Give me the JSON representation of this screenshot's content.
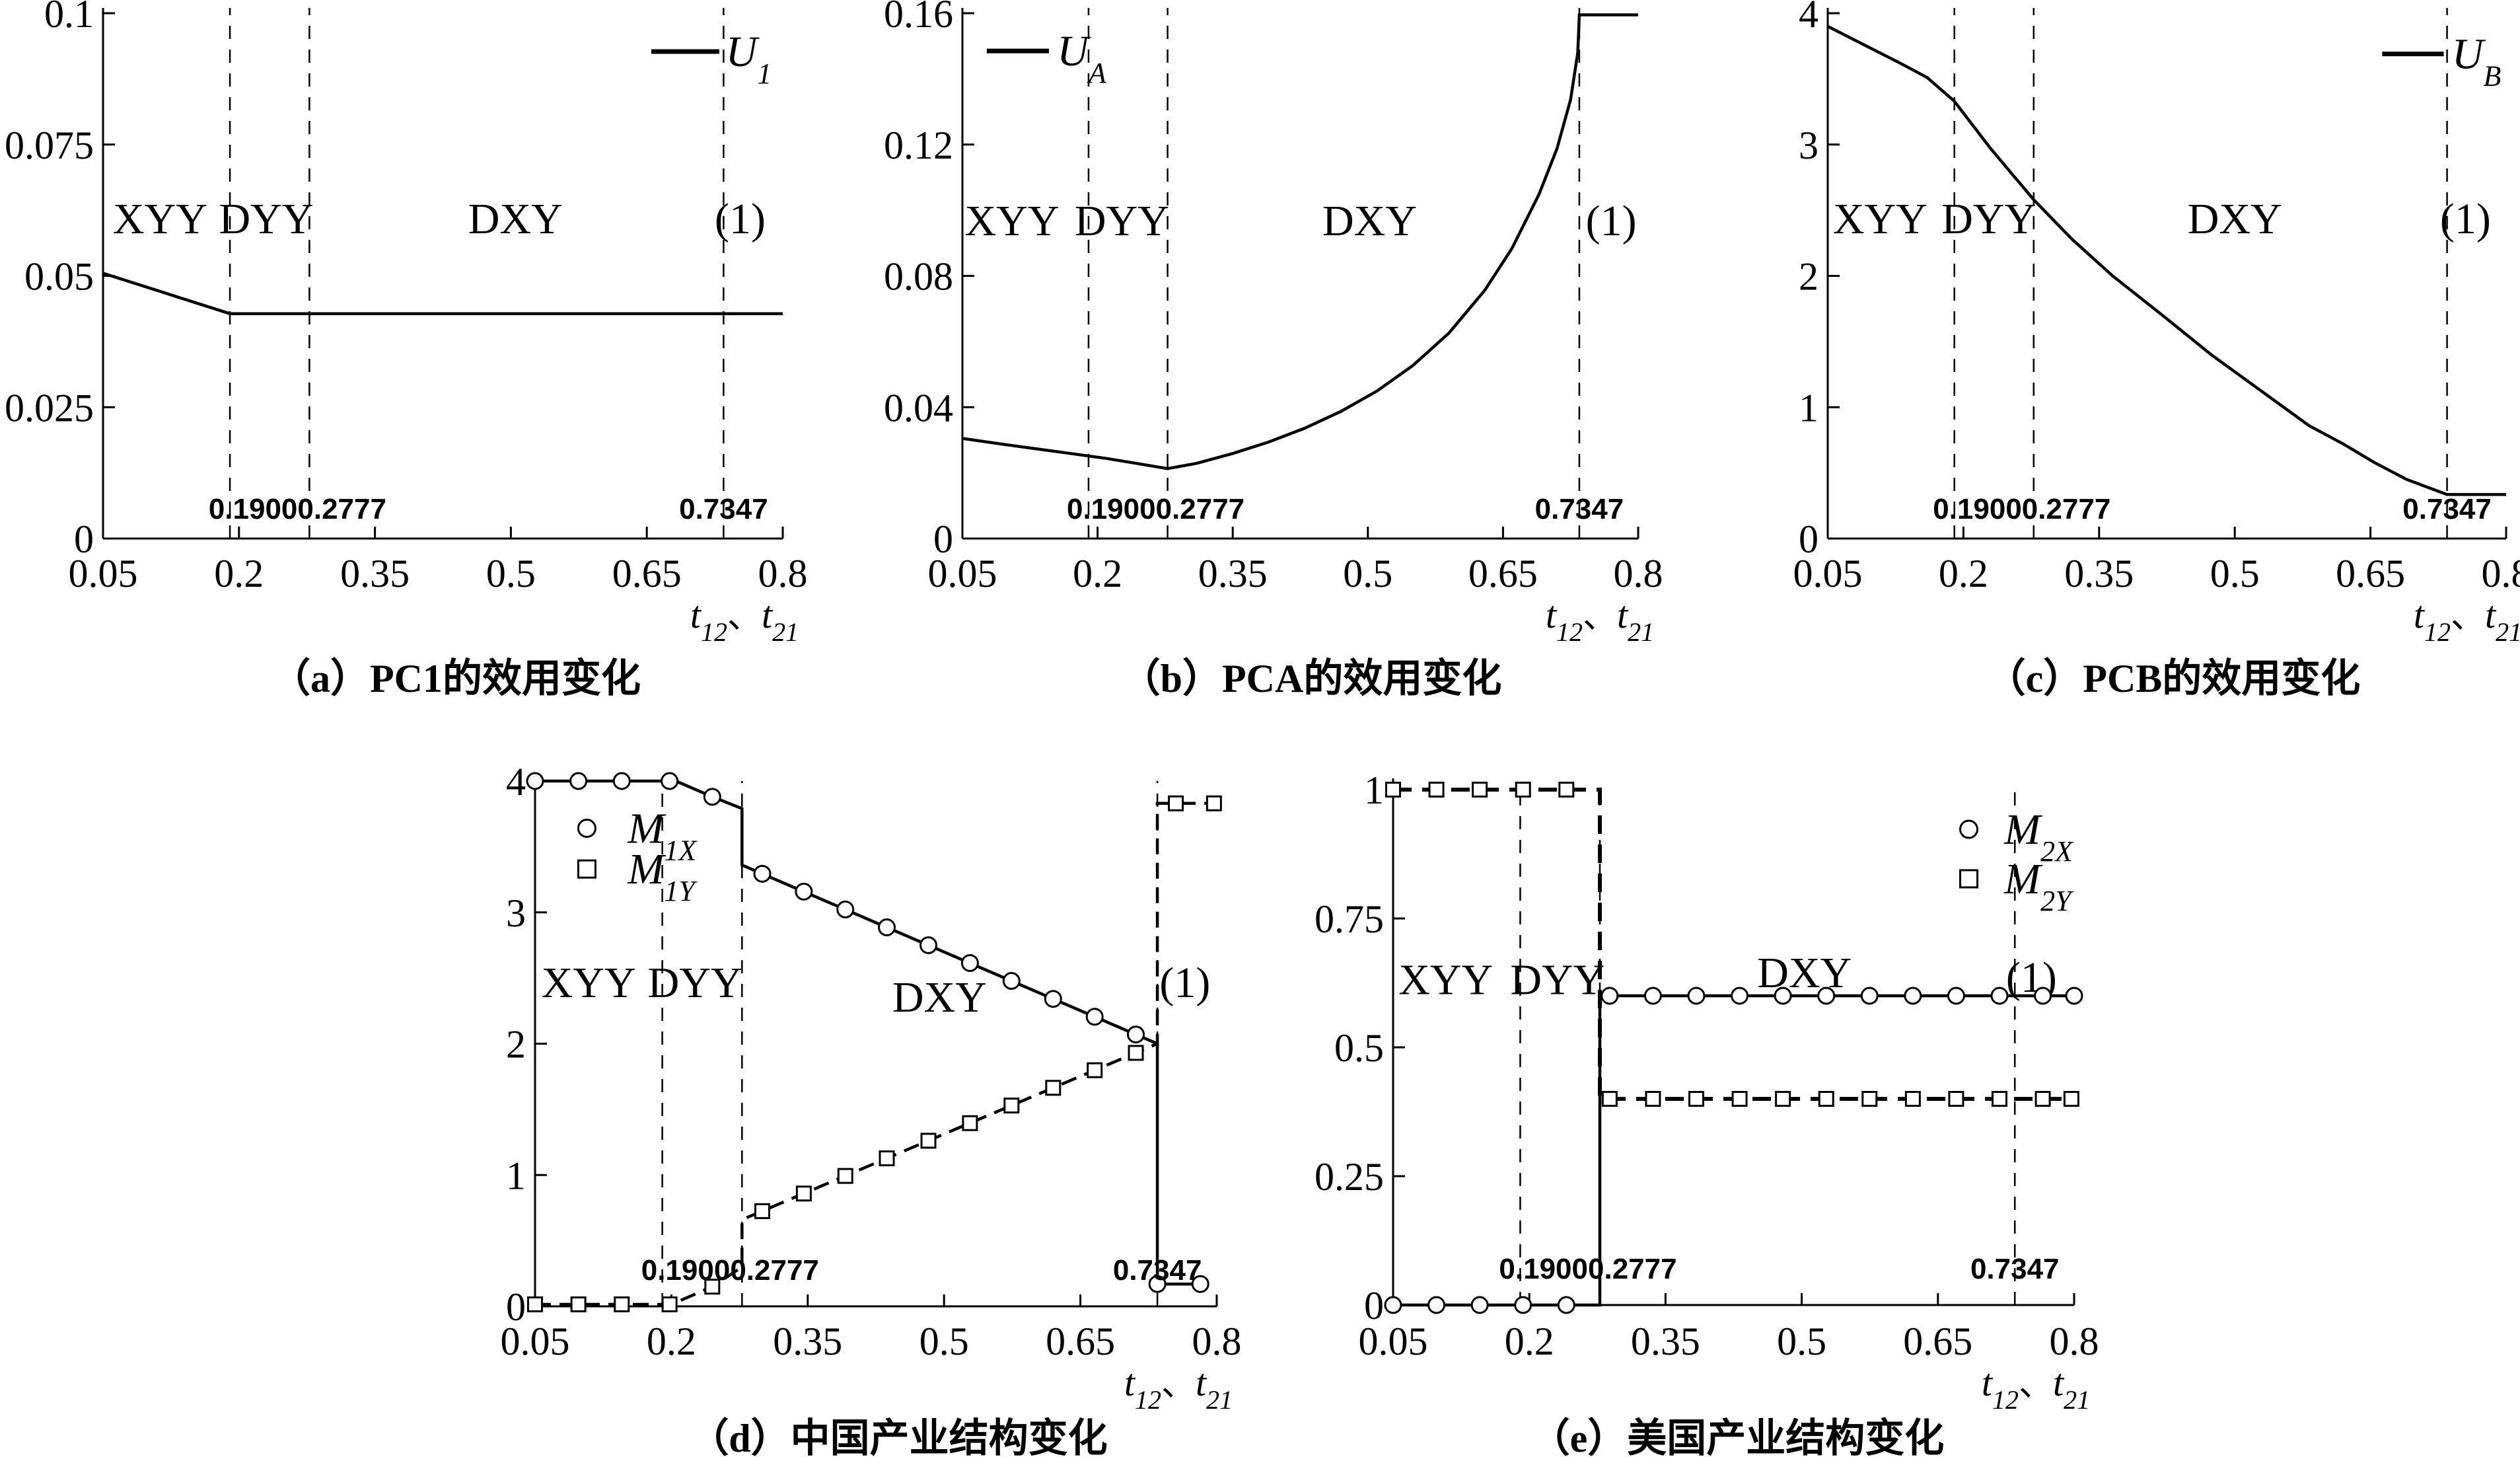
{
  "page": {
    "background": "#ffffff",
    "ink": "#000000"
  },
  "figure": {
    "xlim": [
      0.05,
      0.8
    ],
    "x_ticks": [
      0.05,
      0.2,
      0.35,
      0.5,
      0.65,
      0.8
    ],
    "x_tick_labels": [
      "0.05",
      "0.2",
      "0.35",
      "0.5",
      "0.65",
      "0.8"
    ],
    "xlabel": {
      "var1": "t",
      "sub1": "12",
      "sep": "、",
      "var2": "t",
      "sub2": "21"
    },
    "vlines": [
      {
        "x": 0.19,
        "label": "0.1900"
      },
      {
        "x": 0.2777,
        "label": "0.2777"
      },
      {
        "x": 0.7347,
        "label": "0.7347"
      }
    ]
  },
  "chart_data": [
    {
      "id": "a",
      "type": "line",
      "caption": "（a）PC1的效用变化",
      "ylim": [
        0,
        0.1
      ],
      "y_ticks": [
        0,
        0.025,
        0.05,
        0.075,
        0.1
      ],
      "y_tick_labels": [
        "0",
        "0.025",
        "0.05",
        "0.075",
        "0.1"
      ],
      "regions": [
        {
          "text": "XYY",
          "x": 0.113,
          "y": 0.061
        },
        {
          "text": "DYY",
          "x": 0.23,
          "y": 0.061
        },
        {
          "text": "DXY",
          "x": 0.505,
          "y": 0.061
        },
        {
          "text": "(1)",
          "x": 0.753,
          "y": 0.061
        }
      ],
      "legend": [
        {
          "marker": "line",
          "main": "U",
          "sub": "1",
          "x1": 0.655,
          "x2": 0.73,
          "y": 0.0927,
          "label_x": 0.737
        }
      ],
      "series": [
        {
          "name": "U1",
          "line_style": "solid",
          "marker": "none",
          "line_points": [
            [
              0.05,
              0.0505
            ],
            [
              0.19,
              0.0428
            ],
            [
              0.8,
              0.0428
            ]
          ],
          "marker_points": []
        }
      ]
    },
    {
      "id": "b",
      "type": "line",
      "caption": "（b）PCA的效用变化",
      "ylim": [
        0,
        0.16
      ],
      "y_ticks": [
        0,
        0.04,
        0.08,
        0.12,
        0.16
      ],
      "y_tick_labels": [
        "0",
        "0.04",
        "0.08",
        "0.12",
        "0.16"
      ],
      "regions": [
        {
          "text": "XYY",
          "x": 0.105,
          "y": 0.097
        },
        {
          "text": "DYY",
          "x": 0.227,
          "y": 0.097
        },
        {
          "text": "DXY",
          "x": 0.502,
          "y": 0.097
        },
        {
          "text": "(1)",
          "x": 0.77,
          "y": 0.097
        }
      ],
      "legend": [
        {
          "marker": "line",
          "main": "U",
          "sub": "A",
          "x1": 0.077,
          "x2": 0.146,
          "y": 0.1485,
          "label_x": 0.155
        }
      ],
      "series": [
        {
          "name": "UA",
          "line_style": "solid",
          "marker": "none",
          "line_points": [
            [
              0.05,
              0.0305
            ],
            [
              0.09,
              0.0289
            ],
            [
              0.13,
              0.0274
            ],
            [
              0.17,
              0.0259
            ],
            [
              0.21,
              0.0244
            ],
            [
              0.245,
              0.0228
            ],
            [
              0.2777,
              0.0213
            ],
            [
              0.31,
              0.0229
            ],
            [
              0.35,
              0.0259
            ],
            [
              0.39,
              0.0294
            ],
            [
              0.43,
              0.0336
            ],
            [
              0.47,
              0.0387
            ],
            [
              0.51,
              0.0449
            ],
            [
              0.55,
              0.0527
            ],
            [
              0.59,
              0.0626
            ],
            [
              0.63,
              0.0757
            ],
            [
              0.66,
              0.0884
            ],
            [
              0.69,
              0.1049
            ],
            [
              0.71,
              0.1188
            ],
            [
              0.725,
              0.1337
            ],
            [
              0.733,
              0.148
            ],
            [
              0.7347,
              0.1595
            ],
            [
              0.8,
              0.1595
            ]
          ],
          "marker_points": []
        }
      ]
    },
    {
      "id": "c",
      "type": "line",
      "caption": "（c）PCB的效用变化",
      "ylim": [
        0,
        4
      ],
      "y_ticks": [
        0,
        1,
        2,
        3,
        4
      ],
      "y_tick_labels": [
        "0",
        "1",
        "2",
        "3",
        "4"
      ],
      "regions": [
        {
          "text": "XYY",
          "x": 0.108,
          "y": 2.44
        },
        {
          "text": "DYY",
          "x": 0.228,
          "y": 2.44
        },
        {
          "text": "DXY",
          "x": 0.5,
          "y": 2.44
        },
        {
          "text": "(1)",
          "x": 0.755,
          "y": 2.44
        }
      ],
      "legend": [
        {
          "marker": "line",
          "main": "U",
          "sub": "B",
          "x1": 0.663,
          "x2": 0.731,
          "y": 3.69,
          "label_x": 0.74
        }
      ],
      "series": [
        {
          "name": "UB",
          "line_style": "solid",
          "marker": "none",
          "line_points": [
            [
              0.05,
              3.9
            ],
            [
              0.09,
              3.76
            ],
            [
              0.13,
              3.62
            ],
            [
              0.16,
              3.51
            ],
            [
              0.19,
              3.33
            ],
            [
              0.23,
              2.97
            ],
            [
              0.2777,
              2.58
            ],
            [
              0.32,
              2.28
            ],
            [
              0.365,
              2.0
            ],
            [
              0.42,
              1.7
            ],
            [
              0.474,
              1.4
            ],
            [
              0.53,
              1.12
            ],
            [
              0.582,
              0.86
            ],
            [
              0.62,
              0.72
            ],
            [
              0.654,
              0.58
            ],
            [
              0.69,
              0.45
            ],
            [
              0.7347,
              0.335
            ],
            [
              0.8,
              0.335
            ]
          ],
          "marker_points": []
        }
      ]
    },
    {
      "id": "d",
      "type": "line",
      "caption": "（d）中国产业结构变化",
      "ylim": [
        0,
        4
      ],
      "y_ticks": [
        0,
        1,
        2,
        3,
        4
      ],
      "y_tick_labels": [
        "0",
        "1",
        "2",
        "3",
        "4"
      ],
      "regions": [
        {
          "text": "XYY",
          "x": 0.109,
          "y": 2.47
        },
        {
          "text": "DYY",
          "x": 0.226,
          "y": 2.47
        },
        {
          "text": "DXY",
          "x": 0.495,
          "y": 2.36
        },
        {
          "text": "(1)",
          "x": 0.765,
          "y": 2.47
        }
      ],
      "legend": [
        {
          "marker": "circle",
          "main": "M",
          "sub": "1X",
          "x": 0.107,
          "y": 3.64,
          "label_x": 0.152
        },
        {
          "marker": "square",
          "main": "M",
          "sub": "1Y",
          "x": 0.107,
          "y": 3.33,
          "label_x": 0.152
        }
      ],
      "series": [
        {
          "name": "M1X",
          "line_style": "solid",
          "marker": "circle",
          "line_points": [
            [
              0.05,
              4
            ],
            [
              0.205,
              4
            ],
            [
              0.245,
              3.88
            ],
            [
              0.2777,
              3.79
            ],
            [
              0.2777,
              3.36
            ],
            [
              0.7347,
              2.0
            ],
            [
              0.7347,
              0.17
            ],
            [
              0.79,
              0.17
            ]
          ],
          "marker_points": [
            [
              0.05,
              4
            ],
            [
              0.0977,
              4
            ],
            [
              0.1454,
              4
            ],
            [
              0.198,
              4
            ],
            [
              0.245,
              3.88
            ],
            [
              0.3,
              3.294
            ],
            [
              0.3457,
              3.158
            ],
            [
              0.3914,
              3.022
            ],
            [
              0.437,
              2.886
            ],
            [
              0.4828,
              2.75
            ],
            [
              0.5285,
              2.614
            ],
            [
              0.5742,
              2.478
            ],
            [
              0.62,
              2.341
            ],
            [
              0.6657,
              2.205
            ],
            [
              0.711,
              2.07
            ],
            [
              0.7347,
              0.17
            ],
            [
              0.782,
              0.17
            ]
          ]
        },
        {
          "name": "M1Y",
          "line_style": "dashed",
          "marker": "square",
          "line_points": [
            [
              0.05,
              0.015
            ],
            [
              0.2,
              0.015
            ],
            [
              0.245,
              0.15
            ],
            [
              0.2777,
              0.3
            ],
            [
              0.2777,
              0.66
            ],
            [
              0.7347,
              2.0
            ],
            [
              0.7347,
              3.83
            ],
            [
              0.8,
              3.83
            ]
          ],
          "marker_points": [
            [
              0.05,
              0.015
            ],
            [
              0.0977,
              0.015
            ],
            [
              0.1454,
              0.015
            ],
            [
              0.198,
              0.015
            ],
            [
              0.245,
              0.15
            ],
            [
              0.3,
              0.725
            ],
            [
              0.3457,
              0.859
            ],
            [
              0.3914,
              0.993
            ],
            [
              0.437,
              1.127
            ],
            [
              0.4828,
              1.261
            ],
            [
              0.5285,
              1.395
            ],
            [
              0.5742,
              1.529
            ],
            [
              0.62,
              1.664
            ],
            [
              0.6657,
              1.798
            ],
            [
              0.711,
              1.93
            ],
            [
              0.755,
              3.83
            ],
            [
              0.797,
              3.83
            ]
          ]
        }
      ]
    },
    {
      "id": "e",
      "type": "line",
      "caption": "（e）美国产业结构变化",
      "ylim": [
        0,
        1
      ],
      "y_ticks": [
        0,
        0.25,
        0.5,
        0.75,
        1
      ],
      "y_tick_labels": [
        "0",
        "0.25",
        "0.5",
        "0.75",
        "1"
      ],
      "regions": [
        {
          "text": "XYY",
          "x": 0.108,
          "y": 0.633
        },
        {
          "text": "DYY",
          "x": 0.231,
          "y": 0.633
        },
        {
          "text": "DXY",
          "x": 0.503,
          "y": 0.646
        },
        {
          "text": "(1)",
          "x": 0.753,
          "y": 0.637
        }
      ],
      "legend": [
        {
          "marker": "circle",
          "main": "M",
          "sub": "2X",
          "x": 0.684,
          "y": 0.923,
          "label_x": 0.723
        },
        {
          "marker": "square",
          "main": "M",
          "sub": "2Y",
          "x": 0.684,
          "y": 0.827,
          "label_x": 0.723
        }
      ],
      "series": [
        {
          "name": "M2Y",
          "line_style": "dashed-thick",
          "marker": "square",
          "line_points": [
            [
              0.05,
              1.0
            ],
            [
              0.2777,
              1.0
            ],
            [
              0.2777,
              0.4
            ],
            [
              0.8,
              0.4
            ]
          ],
          "marker_points": [
            [
              0.05,
              1
            ],
            [
              0.0977,
              1
            ],
            [
              0.1454,
              1
            ],
            [
              0.1931,
              1
            ],
            [
              0.2408,
              1
            ],
            [
              0.2885,
              0.4
            ],
            [
              0.3362,
              0.4
            ],
            [
              0.3839,
              0.4
            ],
            [
              0.4316,
              0.4
            ],
            [
              0.4793,
              0.4
            ],
            [
              0.527,
              0.4
            ],
            [
              0.5747,
              0.4
            ],
            [
              0.6224,
              0.4
            ],
            [
              0.6701,
              0.4
            ],
            [
              0.7178,
              0.4
            ],
            [
              0.7655,
              0.4
            ],
            [
              0.797,
              0.4
            ]
          ]
        },
        {
          "name": "M2X",
          "line_style": "solid",
          "marker": "circle",
          "line_points": [
            [
              0.05,
              0.0
            ],
            [
              0.2777,
              0.0
            ],
            [
              0.2777,
              0.6
            ],
            [
              0.8,
              0.6
            ]
          ],
          "marker_points": [
            [
              0.05,
              0
            ],
            [
              0.0977,
              0
            ],
            [
              0.1454,
              0
            ],
            [
              0.1931,
              0
            ],
            [
              0.2408,
              0
            ],
            [
              0.2885,
              0.6
            ],
            [
              0.3362,
              0.6
            ],
            [
              0.3839,
              0.6
            ],
            [
              0.4316,
              0.6
            ],
            [
              0.4793,
              0.6
            ],
            [
              0.527,
              0.6
            ],
            [
              0.5747,
              0.6
            ],
            [
              0.6224,
              0.6
            ],
            [
              0.6701,
              0.6
            ],
            [
              0.7178,
              0.6
            ],
            [
              0.7655,
              0.6
            ],
            [
              0.8,
              0.6
            ]
          ]
        }
      ]
    }
  ]
}
